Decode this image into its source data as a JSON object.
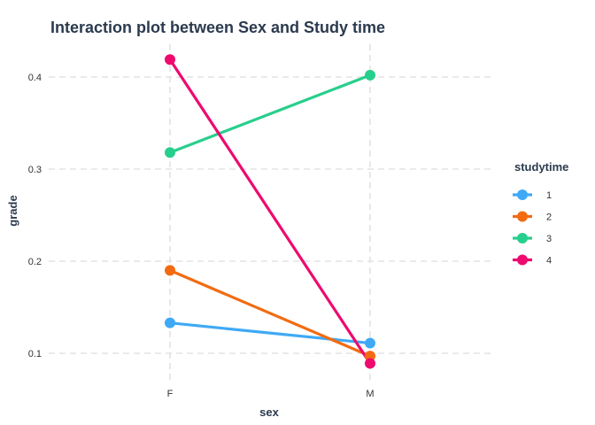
{
  "chart_data": {
    "type": "line",
    "title": "Interaction plot between Sex and Study time",
    "xlabel": "sex",
    "ylabel": "grade",
    "categories": [
      "F",
      "M"
    ],
    "yticks": [
      0.1,
      0.2,
      0.3,
      0.4
    ],
    "ylim": [
      0.08,
      0.43
    ],
    "grid": true,
    "legend": {
      "title": "studytime",
      "placement": "right"
    },
    "series": [
      {
        "name": "1",
        "color": "#3fa9f5",
        "values": [
          0.133,
          0.111
        ]
      },
      {
        "name": "2",
        "color": "#f26b11",
        "values": [
          0.19,
          0.097
        ]
      },
      {
        "name": "3",
        "color": "#27cf8c",
        "values": [
          0.318,
          0.402
        ]
      },
      {
        "name": "4",
        "color": "#ee0a6f",
        "values": [
          0.419,
          0.089
        ]
      }
    ]
  }
}
